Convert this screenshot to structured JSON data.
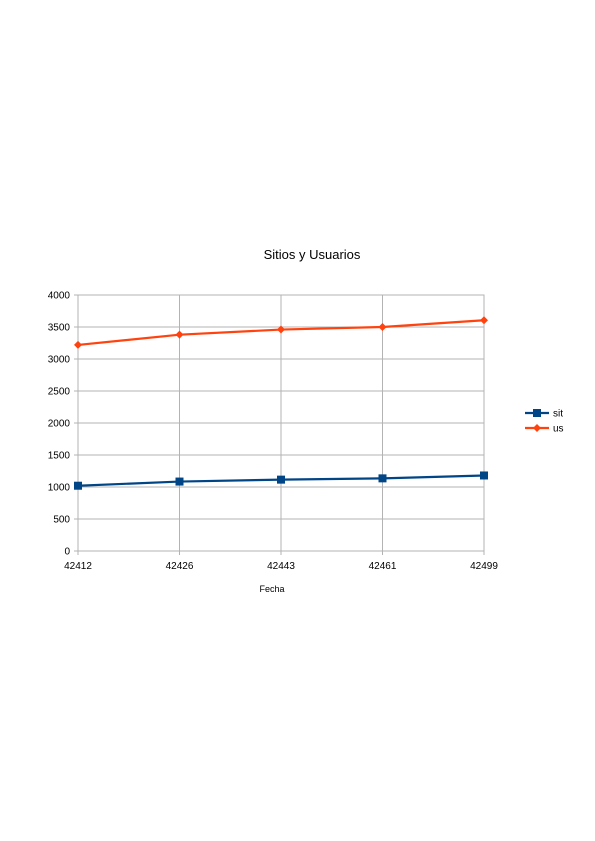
{
  "chart_data": {
    "type": "line",
    "title": "Sitios y Usuarios",
    "xlabel": "Fecha",
    "ylabel": "",
    "categories": [
      "42412",
      "42426",
      "42443",
      "42461",
      "42499"
    ],
    "ylim": [
      0,
      4000
    ],
    "yticks": [
      0,
      500,
      1000,
      1500,
      2000,
      2500,
      3000,
      3500,
      4000
    ],
    "grid": true,
    "legend_position": "right",
    "series": [
      {
        "name": "sit",
        "values": [
          1020,
          1085,
          1115,
          1135,
          1180
        ],
        "color": "#004586",
        "marker": "square"
      },
      {
        "name": "us",
        "values": [
          3220,
          3380,
          3460,
          3500,
          3605
        ],
        "color": "#ff420e",
        "marker": "diamond"
      }
    ]
  }
}
